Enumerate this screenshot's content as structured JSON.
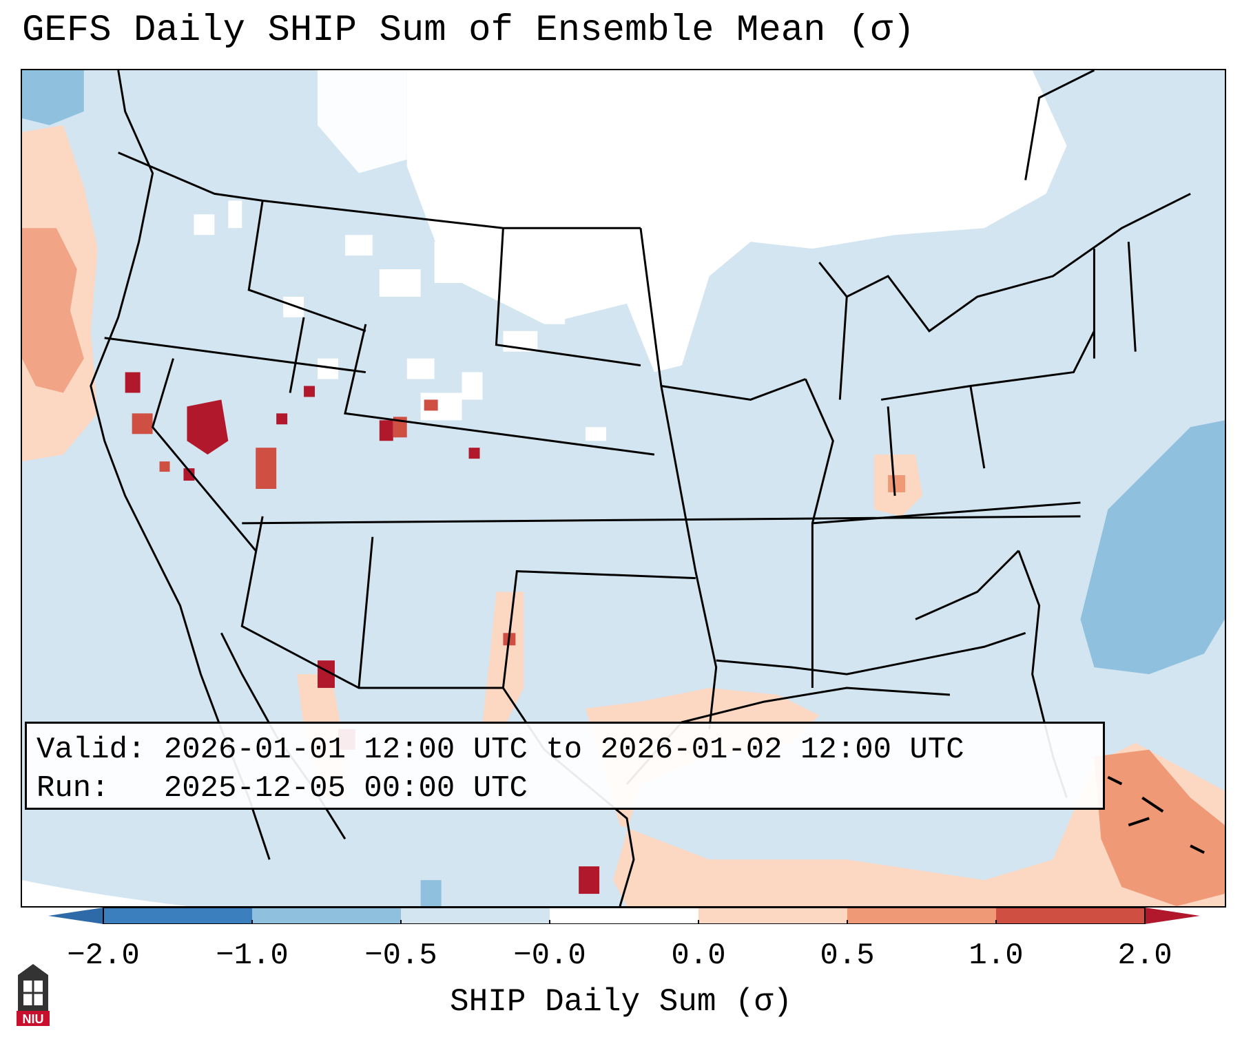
{
  "title": "GEFS Daily SHIP Sum of Ensemble Mean (σ)",
  "info": {
    "valid_label": "Valid:",
    "valid_value": "2026-01-01 12:00 UTC to 2026-01-02 12:00 UTC",
    "run_label": "Run:",
    "run_value": "2025-12-05 00:00 UTC"
  },
  "colorbar": {
    "label": "SHIP Daily Sum (σ)",
    "ticks": [
      "−2.0",
      "−1.0",
      "−0.5",
      "−0.0",
      "0.0",
      "0.5",
      "1.0",
      "2.0"
    ],
    "bin_colors": [
      "#3b7fbf",
      "#8fc1de",
      "#d2e5f1",
      "#ffffff",
      "#fcd8c3",
      "#ef9977",
      "#cf4f43"
    ],
    "extend_low_color": "#2f6aa8",
    "extend_high_color": "#b2182b"
  },
  "logo": {
    "text": "NIU",
    "color": "#c8102e"
  }
}
